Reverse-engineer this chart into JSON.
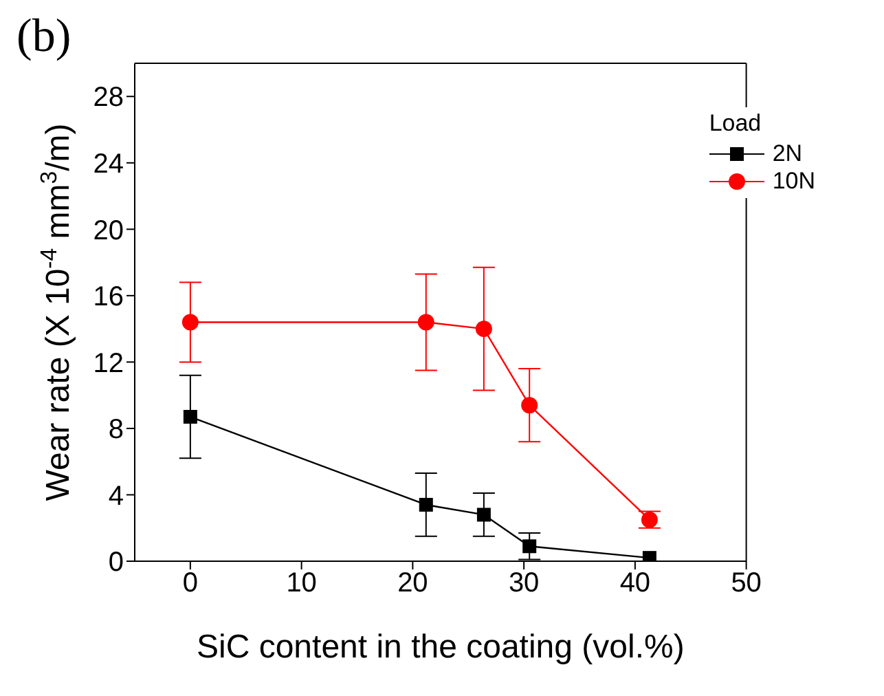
{
  "chart_data": {
    "type": "line",
    "title": "(b)",
    "xlabel": "SiC content in the coating (vol.%)",
    "ylabel": "Wear rate (X 10$^{-4}$ mm$^{3}$/m)",
    "legend_title": "Load",
    "legend": "top right",
    "xlim": [
      -5,
      50
    ],
    "xticks": [
      0,
      10,
      20,
      30,
      40,
      50
    ],
    "ylim": [
      0,
      30
    ],
    "yticks": [
      0,
      4,
      8,
      12,
      16,
      20,
      24,
      28
    ],
    "x": [
      0,
      21.2,
      26.4,
      30.5,
      41.3
    ],
    "series": [
      {
        "name": "2N",
        "color": "#000000",
        "marker": "square",
        "values": [
          8.7,
          3.4,
          2.8,
          0.9,
          0.2
        ],
        "errors": [
          2.5,
          1.9,
          1.3,
          0.8,
          null
        ]
      },
      {
        "name": "10N",
        "color": "#ff0000",
        "marker": "circle",
        "values": [
          14.4,
          14.4,
          14.0,
          9.4,
          2.5
        ],
        "errors": [
          2.4,
          2.9,
          3.7,
          2.2,
          0.5
        ]
      }
    ]
  }
}
